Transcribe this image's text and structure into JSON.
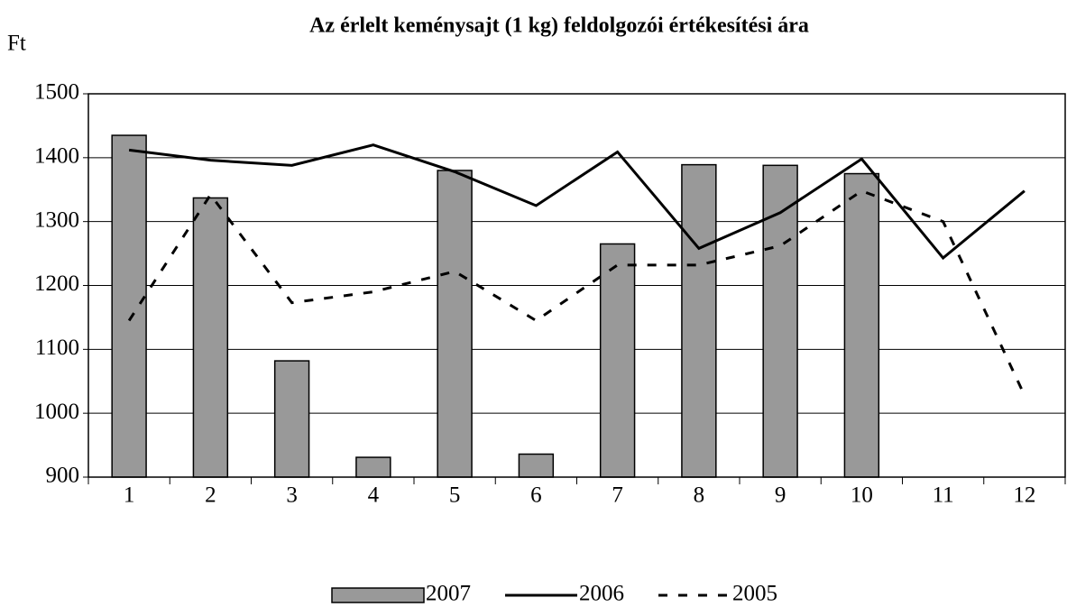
{
  "chart_data": {
    "type": "combo",
    "title": "Az érlelt keménysajt (1 kg) feldolgozói értékesítési ára",
    "y_label": "Ft",
    "categories": [
      "1",
      "2",
      "3",
      "4",
      "5",
      "6",
      "7",
      "8",
      "9",
      "10",
      "11",
      "12"
    ],
    "series": [
      {
        "name": "2007",
        "type": "bar",
        "color": "#999999",
        "values": [
          1435,
          1337,
          1082,
          931,
          1380,
          936,
          1265,
          1389,
          1388,
          1375,
          null,
          null
        ]
      },
      {
        "name": "2006",
        "type": "line",
        "style": "solid",
        "color": "#000000",
        "values": [
          1412,
          1396,
          1388,
          1420,
          1378,
          1325,
          1409,
          1258,
          1314,
          1398,
          1243,
          1348
        ]
      },
      {
        "name": "2005",
        "type": "line",
        "style": "dashed",
        "color": "#000000",
        "values": [
          1145,
          1342,
          1173,
          1190,
          1222,
          1145,
          1232,
          1232,
          1262,
          1348,
          1300,
          1028
        ]
      }
    ],
    "ylim": [
      900,
      1500
    ],
    "yticks": [
      900,
      1000,
      1100,
      1200,
      1300,
      1400,
      1500
    ],
    "grid": true,
    "legend": "bottom"
  }
}
